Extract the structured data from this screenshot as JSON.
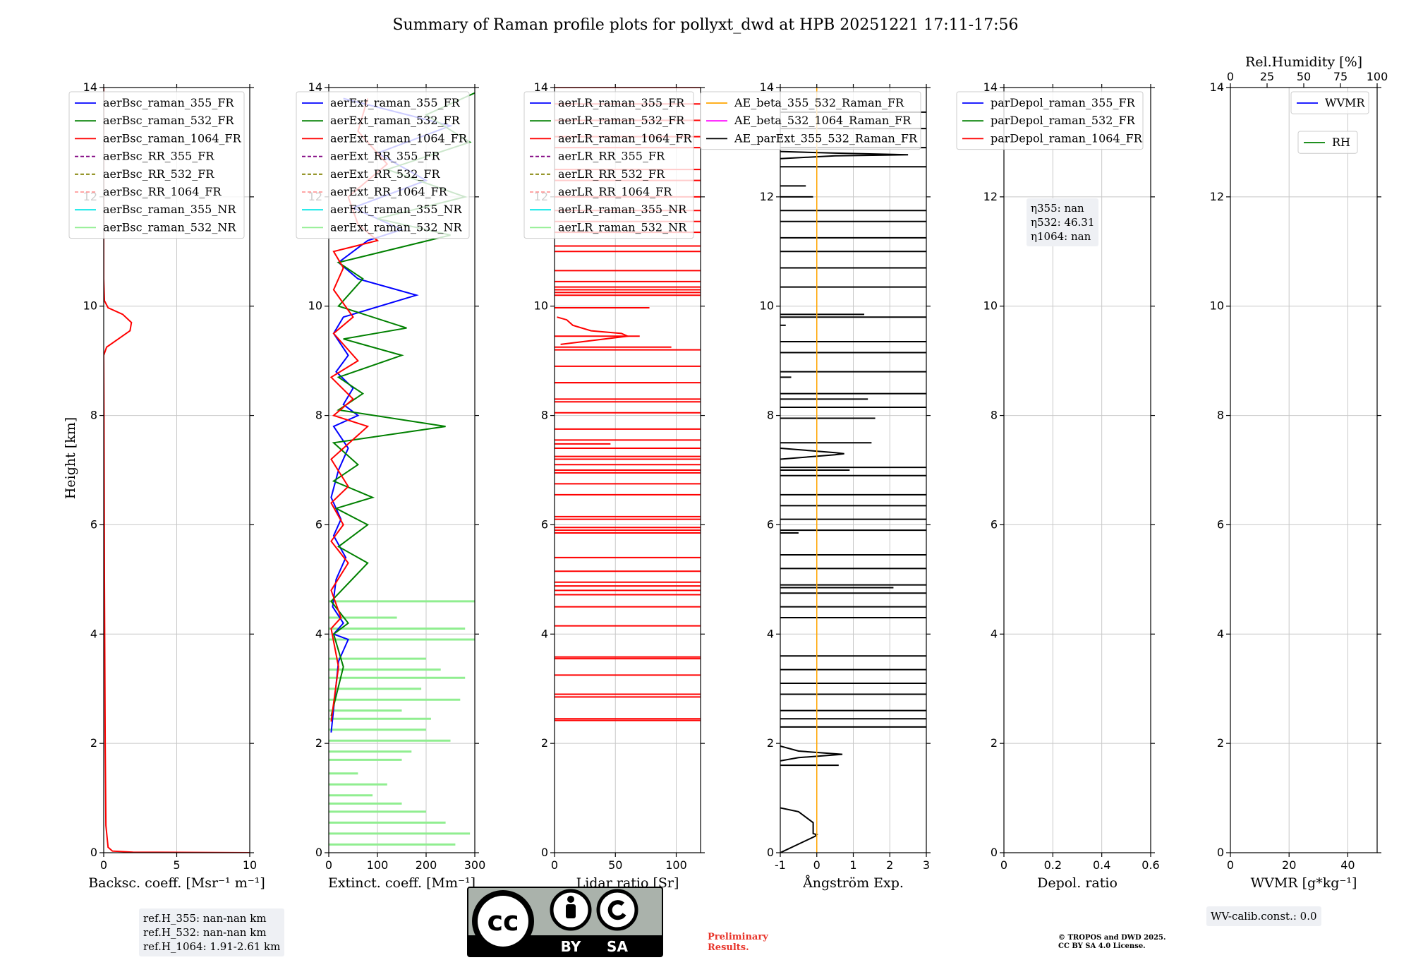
{
  "title": "Summary of Raman profile plots for pollyxt_dwd at HPB 20251221 17:11-17:56",
  "ylabel": "Height [km]",
  "ylim": [
    0,
    14
  ],
  "yticks": [
    0,
    2,
    4,
    6,
    8,
    10,
    12,
    14
  ],
  "chart_data": [
    {
      "id": "bsc",
      "type": "line",
      "xlabel": "Backsc. coeff. [Msr⁻¹ m⁻¹]",
      "xlim": [
        0,
        10
      ],
      "xticks": [
        0,
        5,
        10
      ],
      "legend": [
        "aerBsc_raman_355_FR",
        "aerBsc_raman_532_FR",
        "aerBsc_raman_1064_FR",
        "aerBsc_RR_355_FR",
        "aerBsc_RR_532_FR",
        "aerBsc_RR_1064_FR",
        "aerBsc_raman_355_NR",
        "aerBsc_raman_532_NR"
      ],
      "legend_colors": [
        "#0000ff",
        "#008000",
        "#ff0000",
        "#800080",
        "#808000",
        "#ff9999",
        "#00e6e6",
        "#90ee90"
      ],
      "legend_dashed": [
        false,
        false,
        false,
        true,
        true,
        true,
        false,
        false
      ],
      "series": [
        {
          "name": "aerBsc_raman_1064_FR",
          "color": "#ff0000",
          "points": [
            [
              10,
              0.0
            ],
            [
              2.0,
              0.01
            ],
            [
              0.6,
              0.03
            ],
            [
              0.3,
              0.1
            ],
            [
              0.15,
              0.5
            ],
            [
              0.1,
              2
            ],
            [
              0.05,
              5
            ],
            [
              0.02,
              8
            ],
            [
              0.0,
              9.1
            ],
            [
              0.2,
              9.25
            ],
            [
              1.0,
              9.4
            ],
            [
              1.8,
              9.55
            ],
            [
              1.9,
              9.7
            ],
            [
              1.3,
              9.85
            ],
            [
              0.3,
              9.97
            ],
            [
              0.05,
              10.1
            ],
            [
              0.0,
              10.5
            ],
            [
              0.0,
              14
            ]
          ]
        }
      ]
    },
    {
      "id": "ext",
      "type": "line",
      "xlabel": "Extinct. coeff. [Mm⁻¹]",
      "xlim": [
        0,
        300
      ],
      "xticks": [
        0,
        100,
        200,
        300
      ],
      "legend": [
        "aerExt_raman_355_FR",
        "aerExt_raman_532_FR",
        "aerExt_raman_1064_FR",
        "aerExt_RR_355_FR",
        "aerExt_RR_532_FR",
        "aerExt_RR_1064_FR",
        "aerExt_raman_355_NR",
        "aerExt_raman_532_NR"
      ],
      "legend_colors": [
        "#0000ff",
        "#008000",
        "#ff0000",
        "#800080",
        "#808000",
        "#ff9999",
        "#00e6e6",
        "#90ee90"
      ],
      "legend_dashed": [
        false,
        false,
        false,
        true,
        true,
        true,
        false,
        false
      ],
      "series": [
        {
          "name": "aerExt_raman_355_FR",
          "color": "#0000ff",
          "points": [
            [
              5,
              2.2
            ],
            [
              20,
              3.5
            ],
            [
              40,
              3.9
            ],
            [
              10,
              4.0
            ],
            [
              30,
              4.2
            ],
            [
              8,
              4.5
            ],
            [
              15,
              5.0
            ],
            [
              35,
              5.4
            ],
            [
              10,
              5.8
            ],
            [
              25,
              6.1
            ],
            [
              5,
              6.5
            ],
            [
              20,
              7.0
            ],
            [
              40,
              7.4
            ],
            [
              10,
              7.8
            ],
            [
              60,
              8.0
            ],
            [
              30,
              8.2
            ],
            [
              50,
              8.5
            ],
            [
              15,
              8.8
            ],
            [
              40,
              9.1
            ],
            [
              10,
              9.5
            ],
            [
              30,
              9.8
            ],
            [
              180,
              10.2
            ],
            [
              60,
              10.5
            ],
            [
              20,
              10.8
            ],
            [
              80,
              11.2
            ],
            [
              150,
              11.4
            ],
            [
              50,
              11.8
            ],
            [
              200,
              12.3
            ],
            [
              100,
              12.8
            ],
            [
              250,
              13.3
            ],
            [
              30,
              13.8
            ]
          ]
        },
        {
          "name": "aerExt_raman_532_FR",
          "color": "#008000",
          "points": [
            [
              5,
              2.5
            ],
            [
              30,
              3.4
            ],
            [
              10,
              4.0
            ],
            [
              40,
              4.2
            ],
            [
              5,
              4.6
            ],
            [
              80,
              5.3
            ],
            [
              20,
              5.6
            ],
            [
              80,
              6.0
            ],
            [
              15,
              6.3
            ],
            [
              90,
              6.5
            ],
            [
              10,
              6.8
            ],
            [
              60,
              7.1
            ],
            [
              10,
              7.5
            ],
            [
              240,
              7.8
            ],
            [
              20,
              8.1
            ],
            [
              70,
              8.4
            ],
            [
              20,
              8.7
            ],
            [
              150,
              9.1
            ],
            [
              30,
              9.4
            ],
            [
              160,
              9.6
            ],
            [
              20,
              10.0
            ],
            [
              70,
              10.5
            ],
            [
              20,
              10.8
            ],
            [
              250,
              11.3
            ],
            [
              100,
              11.6
            ],
            [
              280,
              12.0
            ],
            [
              120,
              12.5
            ],
            [
              290,
              13.0
            ],
            [
              200,
              13.5
            ],
            [
              300,
              13.9
            ]
          ]
        },
        {
          "name": "aerExt_raman_1064_FR",
          "color": "#ff0000",
          "points": [
            [
              5,
              2.4
            ],
            [
              20,
              3.4
            ],
            [
              5,
              4.1
            ],
            [
              25,
              4.3
            ],
            [
              5,
              4.8
            ],
            [
              40,
              5.3
            ],
            [
              5,
              5.7
            ],
            [
              30,
              6.0
            ],
            [
              5,
              6.4
            ],
            [
              40,
              6.7
            ],
            [
              5,
              7.2
            ],
            [
              80,
              7.8
            ],
            [
              10,
              8.0
            ],
            [
              50,
              8.3
            ],
            [
              5,
              8.7
            ],
            [
              60,
              9.0
            ],
            [
              10,
              9.5
            ],
            [
              50,
              9.8
            ],
            [
              10,
              10.3
            ],
            [
              30,
              10.7
            ],
            [
              10,
              11.0
            ],
            [
              100,
              11.2
            ],
            [
              60,
              11.5
            ],
            [
              40,
              12.0
            ],
            [
              120,
              12.6
            ],
            [
              60,
              13.2
            ],
            [
              80,
              13.8
            ]
          ]
        }
      ],
      "hbar_series": {
        "name": "aerExt_raman_532_NR",
        "color": "#90ee90",
        "segments": [
          [
            0.15,
            260
          ],
          [
            0.35,
            290
          ],
          [
            0.55,
            240
          ],
          [
            0.75,
            200
          ],
          [
            0.9,
            150
          ],
          [
            1.05,
            90
          ],
          [
            1.25,
            120
          ],
          [
            1.45,
            60
          ],
          [
            1.7,
            150
          ],
          [
            1.85,
            170
          ],
          [
            2.05,
            250
          ],
          [
            2.25,
            200
          ],
          [
            2.45,
            210
          ],
          [
            2.6,
            150
          ],
          [
            2.8,
            270
          ],
          [
            3.0,
            190
          ],
          [
            3.2,
            280
          ],
          [
            3.35,
            230
          ],
          [
            3.55,
            200
          ],
          [
            3.9,
            300
          ],
          [
            4.1,
            280
          ],
          [
            4.3,
            140
          ],
          [
            4.6,
            300
          ]
        ]
      }
    },
    {
      "id": "lr",
      "type": "line",
      "xlabel": "Lidar ratio [Sr]",
      "xlim": [
        0,
        120
      ],
      "xticks": [
        0,
        50,
        100
      ],
      "legend": [
        "aerLR_raman_355_FR",
        "aerLR_raman_532_FR",
        "aerLR_raman_1064_FR",
        "aerLR_RR_355_FR",
        "aerLR_RR_532_FR",
        "aerLR_RR_1064_FR",
        "aerLR_raman_355_NR",
        "aerLR_raman_532_NR"
      ],
      "legend_colors": [
        "#0000ff",
        "#008000",
        "#ff0000",
        "#800080",
        "#808000",
        "#ff9999",
        "#00e6e6",
        "#90ee90"
      ],
      "legend_dashed": [
        false,
        false,
        false,
        true,
        true,
        true,
        false,
        false
      ],
      "series": [
        {
          "name": "aerLR_raman_1064_FR",
          "color": "#ff0000",
          "points": [
            [
              5,
              9.3
            ],
            [
              60,
              9.45
            ],
            [
              55,
              9.5
            ],
            [
              30,
              9.55
            ],
            [
              15,
              9.65
            ],
            [
              10,
              9.75
            ],
            [
              2,
              9.8
            ]
          ]
        }
      ],
      "hlines": {
        "name": "aerLR_raman_1064_FR",
        "color": "#ff0000",
        "heights": [
          2.42,
          2.45,
          2.85,
          2.9,
          3.25,
          3.55,
          3.58,
          4.15,
          4.5,
          4.72,
          4.8,
          4.88,
          4.95,
          5.15,
          5.4,
          5.85,
          5.9,
          5.95,
          6.1,
          6.15,
          6.55,
          6.75,
          6.95,
          7.0,
          7.1,
          7.2,
          7.25,
          7.4,
          7.55,
          7.75,
          8.05,
          8.25,
          8.3,
          8.6,
          8.9,
          9.2,
          10.2,
          10.25,
          10.3,
          10.35,
          10.45,
          10.65,
          11.0,
          11.1,
          11.35,
          11.55,
          11.75,
          12.0,
          12.3,
          12.5,
          12.9,
          13.1,
          13.4,
          13.7,
          14.0
        ],
        "partial": [
          [
            7.48,
            46
          ],
          [
            8.6,
            95
          ],
          [
            9.25,
            96
          ],
          [
            9.45,
            70
          ],
          [
            9.97,
            78
          ]
        ]
      }
    },
    {
      "id": "ae",
      "type": "line",
      "xlabel": "Ångström Exp.",
      "xlim": [
        -1,
        3
      ],
      "xticks": [
        -1,
        0,
        1,
        2,
        3
      ],
      "legend": [
        "AE_beta_355_532_Raman_FR",
        "AE_beta_532_1064_Raman_FR",
        "AE_parExt_355_532_Raman_FR"
      ],
      "legend_colors": [
        "#ffa500",
        "#ff00ff",
        "#000000"
      ],
      "legend_dashed": [
        false,
        false,
        false
      ],
      "vline": {
        "name": "AE_beta_355_532_Raman_FR",
        "x": 0,
        "color": "#ffa500"
      },
      "series": [
        {
          "name": "AE_parExt_355_532_Raman_FR",
          "color": "#000000",
          "points": [
            [
              -1,
              0.0
            ],
            [
              -0.05,
              0.3
            ],
            [
              0.0,
              0.33
            ],
            [
              -0.1,
              0.35
            ],
            [
              -0.1,
              0.55
            ],
            [
              -0.5,
              0.75
            ],
            [
              -1,
              0.82
            ]
          ]
        },
        {
          "name": "AE_parExt_355_532_Raman_FR",
          "color": "#000000",
          "points": [
            [
              -1,
              1.68
            ],
            [
              -0.5,
              1.74
            ],
            [
              0.7,
              1.8
            ],
            [
              -0.5,
              1.86
            ],
            [
              -1,
              1.95
            ]
          ]
        },
        {
          "name": "AE_parExt_355_532_Raman_FR",
          "color": "#000000",
          "points": [
            [
              -1,
              7.2
            ],
            [
              0.5,
              7.28
            ],
            [
              0.75,
              7.3
            ],
            [
              0.5,
              7.32
            ],
            [
              -1,
              7.4
            ]
          ]
        },
        {
          "name": "AE_parExt_355_532_Raman_FR",
          "color": "#000000",
          "points": [
            [
              -1,
              12.7
            ],
            [
              0.5,
              12.75
            ],
            [
              2.5,
              12.77
            ],
            [
              0.5,
              12.8
            ],
            [
              -1,
              12.83
            ]
          ]
        }
      ],
      "hlines": {
        "name": "AE_parExt_355_532_Raman_FR",
        "color": "#000000",
        "heights": [
          2.3,
          2.45,
          2.6,
          2.9,
          3.1,
          3.35,
          3.6,
          4.3,
          4.5,
          4.75,
          4.9,
          5.2,
          5.45,
          5.9,
          6.1,
          6.35,
          6.55,
          6.9,
          7.05,
          8.15,
          8.4,
          8.8,
          9.15,
          9.35,
          9.8,
          10.35,
          10.7,
          11.0,
          11.25,
          11.55,
          11.75,
          12.55,
          12.9,
          13.25,
          13.55
        ],
        "partial": [
          [
            1.6,
            0.6
          ],
          [
            4.85,
            2.1
          ],
          [
            5.85,
            -0.5
          ],
          [
            7.0,
            0.9
          ],
          [
            7.5,
            1.5
          ],
          [
            7.95,
            1.6
          ],
          [
            8.3,
            1.4
          ],
          [
            8.7,
            -0.7
          ],
          [
            9.65,
            -0.85
          ],
          [
            9.85,
            1.3
          ],
          [
            12.0,
            -0.1
          ],
          [
            12.2,
            -0.3
          ]
        ]
      }
    },
    {
      "id": "depol",
      "type": "line",
      "xlabel": "Depol. ratio",
      "xlim": [
        0,
        0.6
      ],
      "xticks": [
        0.0,
        0.2,
        0.4,
        0.6
      ],
      "legend": [
        "parDepol_raman_355_FR",
        "parDepol_raman_532_FR",
        "parDepol_raman_1064_FR"
      ],
      "legend_colors": [
        "#0000ff",
        "#008000",
        "#ff0000"
      ],
      "legend_dashed": [
        false,
        false,
        false
      ],
      "series": []
    },
    {
      "id": "wv",
      "type": "line",
      "xlabel": "WVMR [g*kg⁻¹]",
      "xlim": [
        0,
        50
      ],
      "xticks": [
        0,
        20,
        40
      ],
      "top_xlabel": "Rel.Humidity [%]",
      "top_xlim": [
        0,
        100
      ],
      "top_xticks": [
        0,
        25,
        50,
        75,
        100
      ],
      "legend": [
        "WVMR"
      ],
      "legend_colors": [
        "#0000ff"
      ],
      "legend_dashed": [
        false
      ],
      "legend2": [
        "RH"
      ],
      "legend2_colors": [
        "#008000"
      ],
      "series": []
    }
  ],
  "annotations": {
    "eta": [
      "η355: nan",
      "η532: 46.31",
      "η1064: nan"
    ],
    "refH": [
      "ref.H_355: nan-nan km",
      "ref.H_532: nan-nan km",
      "ref.H_1064: 1.91-2.61 km"
    ],
    "wvcalib": "WV-calib.const.: 0.0",
    "preliminary": [
      "Preliminary",
      "Results."
    ],
    "copyright": [
      "© TROPOS and DWD 2025.",
      "CC BY SA 4.0 License."
    ],
    "license": {
      "cc": "cc",
      "by": "BY",
      "sa": "SA"
    }
  }
}
